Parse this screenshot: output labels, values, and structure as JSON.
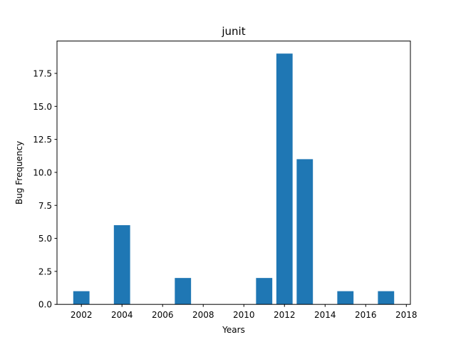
{
  "chart_data": {
    "type": "bar",
    "title": "junit",
    "xlabel": "Years",
    "ylabel": "Bug Frequency",
    "x": [
      2002,
      2004,
      2007,
      2011,
      2012,
      2013,
      2015,
      2017
    ],
    "values": [
      1,
      6,
      2,
      2,
      19,
      11,
      1,
      1
    ],
    "xlim": [
      2000.8,
      2018.2
    ],
    "ylim": [
      0,
      19.95
    ],
    "xticks": [
      "2002",
      "2004",
      "2006",
      "2008",
      "2010",
      "2012",
      "2014",
      "2016",
      "2018"
    ],
    "yticks": [
      "0.0",
      "2.5",
      "5.0",
      "7.5",
      "10.0",
      "12.5",
      "15.0",
      "17.5"
    ],
    "bar_color": "#1f77b4",
    "grid": false,
    "legend": "none"
  }
}
